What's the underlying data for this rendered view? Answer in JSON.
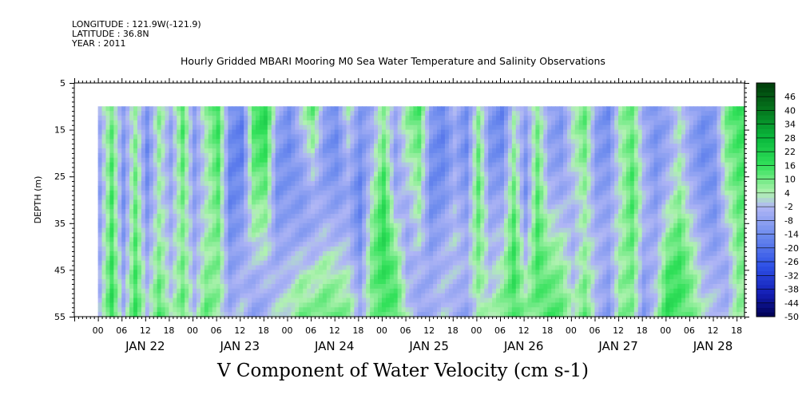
{
  "header": {
    "longitude": "LONGITUDE : 121.9W(-121.9)",
    "latitude": "LATITUDE : 36.8N",
    "year": "YEAR : 2011"
  },
  "chart_data": {
    "type": "heatmap",
    "title": "Hourly Gridded MBARI Mooring M0 Sea Water Temperature and Salinity Observations",
    "variable_title": "V Component of Water Velocity (cm s-1)",
    "ylabel": "DEPTH (m)",
    "xlabel": "",
    "y_axis": {
      "range": [
        5,
        55
      ],
      "inverted": true,
      "ticks": [
        "5",
        "15",
        "25",
        "35",
        "45",
        "55"
      ]
    },
    "x_axis": {
      "range_hours": [
        0,
        170
      ],
      "hour_ticks": [
        "00",
        "06",
        "12",
        "18",
        "00",
        "06",
        "12",
        "18",
        "00",
        "06",
        "12",
        "18",
        "00",
        "06",
        "12",
        "18",
        "00",
        "06",
        "12",
        "18",
        "00",
        "06",
        "12",
        "18",
        "00",
        "06",
        "12",
        "18"
      ],
      "day_labels": [
        "JAN 22",
        "JAN 23",
        "JAN 24",
        "JAN 25",
        "JAN 26",
        "JAN 27",
        "JAN 28"
      ]
    },
    "data_extent": {
      "depth": [
        10,
        55
      ],
      "hours_from_jan21_18": [
        6,
        170
      ]
    },
    "colorbar": {
      "levels": [
        "46",
        "40",
        "34",
        "28",
        "22",
        "16",
        "10",
        "4",
        "-2",
        "-8",
        "-14",
        "-20",
        "-26",
        "-32",
        "-38",
        "-44",
        "-50"
      ],
      "range": [
        -50,
        52
      ]
    },
    "columns": [
      {
        "h": 6,
        "v": [
          -4,
          -6,
          -8,
          -6,
          -4,
          -2
        ]
      },
      {
        "h": 9,
        "v": [
          10,
          12,
          14,
          14,
          16,
          18
        ]
      },
      {
        "h": 12,
        "v": [
          -8,
          -10,
          -12,
          -10,
          -6,
          -4
        ]
      },
      {
        "h": 15,
        "v": [
          4,
          8,
          10,
          12,
          14,
          16
        ]
      },
      {
        "h": 18,
        "v": [
          -10,
          -14,
          -12,
          -8,
          -4,
          0
        ]
      },
      {
        "h": 21,
        "v": [
          8,
          6,
          4,
          6,
          10,
          14
        ]
      },
      {
        "h": 24,
        "v": [
          -6,
          -8,
          -6,
          -4,
          -2,
          2
        ]
      },
      {
        "h": 27,
        "v": [
          14,
          12,
          10,
          8,
          10,
          12
        ]
      },
      {
        "h": 30,
        "v": [
          -8,
          -10,
          -8,
          -6,
          -4,
          -2
        ]
      },
      {
        "h": 33,
        "v": [
          6,
          4,
          2,
          4,
          8,
          12
        ]
      },
      {
        "h": 36,
        "v": [
          16,
          14,
          12,
          10,
          8,
          6
        ]
      },
      {
        "h": 39,
        "v": [
          -10,
          -14,
          -16,
          -12,
          -8,
          -6
        ]
      },
      {
        "h": 42,
        "v": [
          -16,
          -18,
          -12,
          -8,
          -4,
          0
        ]
      },
      {
        "h": 45,
        "v": [
          14,
          12,
          8,
          4,
          -4,
          -8
        ]
      },
      {
        "h": 48,
        "v": [
          20,
          16,
          10,
          4,
          -2,
          -6
        ]
      },
      {
        "h": 51,
        "v": [
          -4,
          -10,
          -12,
          -8,
          -4,
          2
        ]
      },
      {
        "h": 54,
        "v": [
          -12,
          -14,
          -10,
          -6,
          -2,
          4
        ]
      },
      {
        "h": 57,
        "v": [
          2,
          -6,
          -10,
          -8,
          4,
          10
        ]
      },
      {
        "h": 60,
        "v": [
          12,
          4,
          -4,
          -6,
          2,
          8
        ]
      },
      {
        "h": 63,
        "v": [
          -6,
          -10,
          -8,
          -2,
          6,
          12
        ]
      },
      {
        "h": 66,
        "v": [
          -12,
          -14,
          -10,
          -4,
          4,
          10
        ]
      },
      {
        "h": 69,
        "v": [
          4,
          -2,
          -6,
          -4,
          2,
          8
        ]
      },
      {
        "h": 72,
        "v": [
          -10,
          -12,
          -16,
          -14,
          -8,
          -4
        ]
      },
      {
        "h": 75,
        "v": [
          -6,
          -4,
          2,
          8,
          10,
          8
        ]
      },
      {
        "h": 78,
        "v": [
          6,
          10,
          16,
          18,
          16,
          12
        ]
      },
      {
        "h": 81,
        "v": [
          -4,
          -8,
          -6,
          4,
          12,
          14
        ]
      },
      {
        "h": 84,
        "v": [
          8,
          4,
          -2,
          -6,
          -4,
          2
        ]
      },
      {
        "h": 87,
        "v": [
          14,
          10,
          6,
          2,
          -4,
          -8
        ]
      },
      {
        "h": 90,
        "v": [
          -8,
          -12,
          -14,
          -10,
          -6,
          -4
        ]
      },
      {
        "h": 93,
        "v": [
          -14,
          -16,
          -12,
          -6,
          -2,
          0
        ]
      },
      {
        "h": 96,
        "v": [
          -4,
          -6,
          -4,
          0,
          -2,
          -6
        ]
      },
      {
        "h": 99,
        "v": [
          -12,
          -14,
          -10,
          -6,
          -4,
          -8
        ]
      },
      {
        "h": 102,
        "v": [
          6,
          10,
          12,
          10,
          8,
          4
        ]
      },
      {
        "h": 105,
        "v": [
          -10,
          -12,
          -8,
          -4,
          -2,
          4
        ]
      },
      {
        "h": 108,
        "v": [
          -16,
          -14,
          -8,
          -2,
          4,
          10
        ]
      },
      {
        "h": 111,
        "v": [
          2,
          6,
          10,
          14,
          16,
          12
        ]
      },
      {
        "h": 114,
        "v": [
          -8,
          -10,
          -12,
          -6,
          2,
          8
        ]
      },
      {
        "h": 117,
        "v": [
          8,
          10,
          12,
          14,
          14,
          10
        ]
      },
      {
        "h": 120,
        "v": [
          -6,
          -8,
          -4,
          4,
          10,
          14
        ]
      },
      {
        "h": 123,
        "v": [
          -12,
          -10,
          -6,
          2,
          8,
          12
        ]
      },
      {
        "h": 126,
        "v": [
          4,
          2,
          -2,
          -4,
          -2,
          4
        ]
      },
      {
        "h": 129,
        "v": [
          12,
          10,
          6,
          4,
          8,
          12
        ]
      },
      {
        "h": 132,
        "v": [
          -8,
          -10,
          -8,
          -4,
          -2,
          -4
        ]
      },
      {
        "h": 135,
        "v": [
          -14,
          -12,
          -8,
          -6,
          -8,
          -10
        ]
      },
      {
        "h": 138,
        "v": [
          6,
          4,
          2,
          4,
          6,
          8
        ]
      },
      {
        "h": 141,
        "v": [
          10,
          12,
          14,
          12,
          10,
          8
        ]
      },
      {
        "h": 144,
        "v": [
          -6,
          -4,
          -2,
          -4,
          -8,
          -10
        ]
      },
      {
        "h": 147,
        "v": [
          -10,
          -12,
          -10,
          -6,
          -2,
          2
        ]
      },
      {
        "h": 150,
        "v": [
          -8,
          -6,
          -2,
          6,
          14,
          18
        ]
      },
      {
        "h": 153,
        "v": [
          4,
          2,
          6,
          12,
          16,
          14
        ]
      },
      {
        "h": 156,
        "v": [
          -6,
          -8,
          -4,
          2,
          8,
          10
        ]
      },
      {
        "h": 159,
        "v": [
          -12,
          -14,
          -10,
          -6,
          -2,
          2
        ]
      },
      {
        "h": 162,
        "v": [
          -8,
          -10,
          -12,
          -10,
          -4,
          0
        ]
      },
      {
        "h": 165,
        "v": [
          10,
          8,
          4,
          -2,
          -6,
          -4
        ]
      },
      {
        "h": 168,
        "v": [
          16,
          14,
          12,
          10,
          8,
          6
        ]
      }
    ]
  }
}
